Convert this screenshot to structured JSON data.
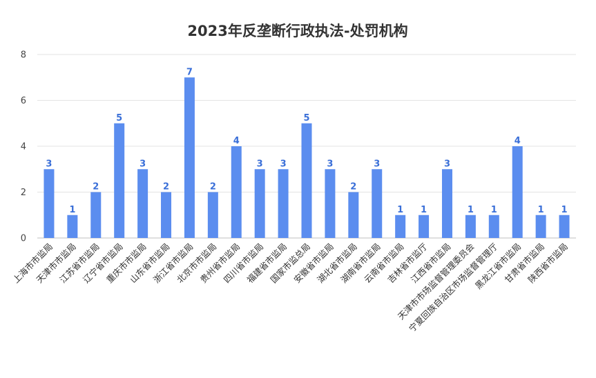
{
  "chart_data": {
    "type": "bar",
    "title": "2023年反垄断行政执法-处罚机构",
    "categories": [
      "上海市市监局",
      "天津市市监局",
      "江苏省市监局",
      "辽宁省市监局",
      "重庆市市监局",
      "山东省市监局",
      "浙江省市监局",
      "北京市市监局",
      "贵州省市监局",
      "四川省市监局",
      "福建省市监局",
      "国家市监总局",
      "安徽省市监局",
      "湖北省市监局",
      "湖南省市监局",
      "云南省市监局",
      "吉林省市监厅",
      "江西省市监局",
      "天津市市场监督管理委员会",
      "宁夏回族自治区市场监督管理厅",
      "黑龙江省市监局",
      "甘肃省市监局",
      "陕西省市监局"
    ],
    "values": [
      3,
      1,
      2,
      5,
      3,
      2,
      7,
      2,
      4,
      3,
      3,
      5,
      3,
      2,
      3,
      1,
      1,
      3,
      1,
      1,
      4,
      1,
      1
    ],
    "yticks": [
      0,
      2,
      4,
      6,
      8
    ],
    "ylim": [
      0,
      8
    ],
    "grid": true,
    "legend": "none",
    "bar_color": "#5B8DEF",
    "label_color": "#3A6FD8"
  }
}
